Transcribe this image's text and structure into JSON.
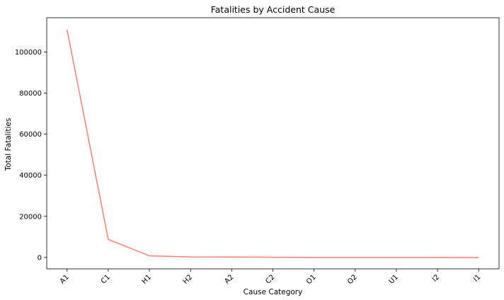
{
  "chart_data": {
    "type": "line",
    "title": "Fatalities by Accident Cause",
    "xlabel": "Cause Category",
    "ylabel": "Total Fatalities",
    "categories": [
      "A1",
      "C1",
      "H1",
      "H2",
      "A2",
      "C2",
      "O1",
      "O2",
      "U1",
      "I2",
      "I1"
    ],
    "series": [
      {
        "values": [
          110800,
          8800,
          800,
          250,
          200,
          100,
          50,
          40,
          30,
          20,
          10
        ],
        "color": "#fa8072"
      }
    ],
    "ylim": [
      -5556,
      116672
    ],
    "yticks": [
      0,
      20000,
      40000,
      60000,
      80000,
      100000
    ],
    "grid": false,
    "legend": "none"
  }
}
